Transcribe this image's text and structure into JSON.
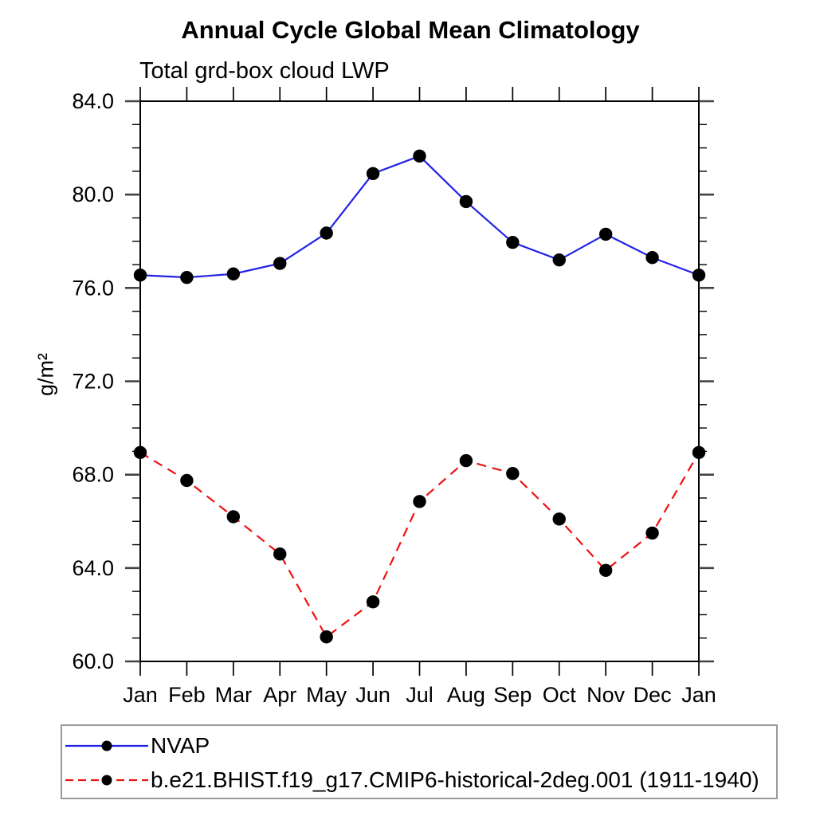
{
  "chart_data": {
    "type": "line",
    "title": "Annual Cycle Global Mean Climatology",
    "subtitle": "Total grd-box cloud LWP",
    "ylabel": "g/m²",
    "x_categories": [
      "Jan",
      "Feb",
      "Mar",
      "Apr",
      "May",
      "Jun",
      "Jul",
      "Aug",
      "Sep",
      "Oct",
      "Nov",
      "Dec",
      "Jan"
    ],
    "ylim": [
      60.0,
      84.0
    ],
    "ytick_major": [
      60.0,
      64.0,
      68.0,
      72.0,
      76.0,
      80.0,
      84.0
    ],
    "ytick_minor_step": 1.0,
    "grid": false,
    "legend_position": "bottom-left-box",
    "series": [
      {
        "name": "NVAP",
        "line_color": "#2222e6",
        "line_style": "solid",
        "marker": "filled-circle",
        "marker_color": "#000000",
        "values": [
          76.55,
          76.45,
          76.6,
          77.05,
          78.35,
          80.9,
          81.65,
          79.7,
          77.95,
          77.2,
          78.3,
          77.3,
          76.55
        ]
      },
      {
        "name": "b.e21.BHIST.f19_g17.CMIP6-historical-2deg.001 (1911-1940)",
        "line_color": "#ee1111",
        "line_style": "dashed",
        "marker": "filled-circle",
        "marker_color": "#000000",
        "values": [
          68.95,
          67.75,
          66.2,
          64.6,
          61.05,
          62.55,
          66.85,
          68.6,
          68.05,
          66.1,
          63.9,
          65.5,
          68.95
        ]
      }
    ]
  },
  "colors": {
    "axis": "#000000",
    "major_tick": "#444444",
    "text": "#000000",
    "legend_border": "#999999",
    "background": "#ffffff"
  }
}
